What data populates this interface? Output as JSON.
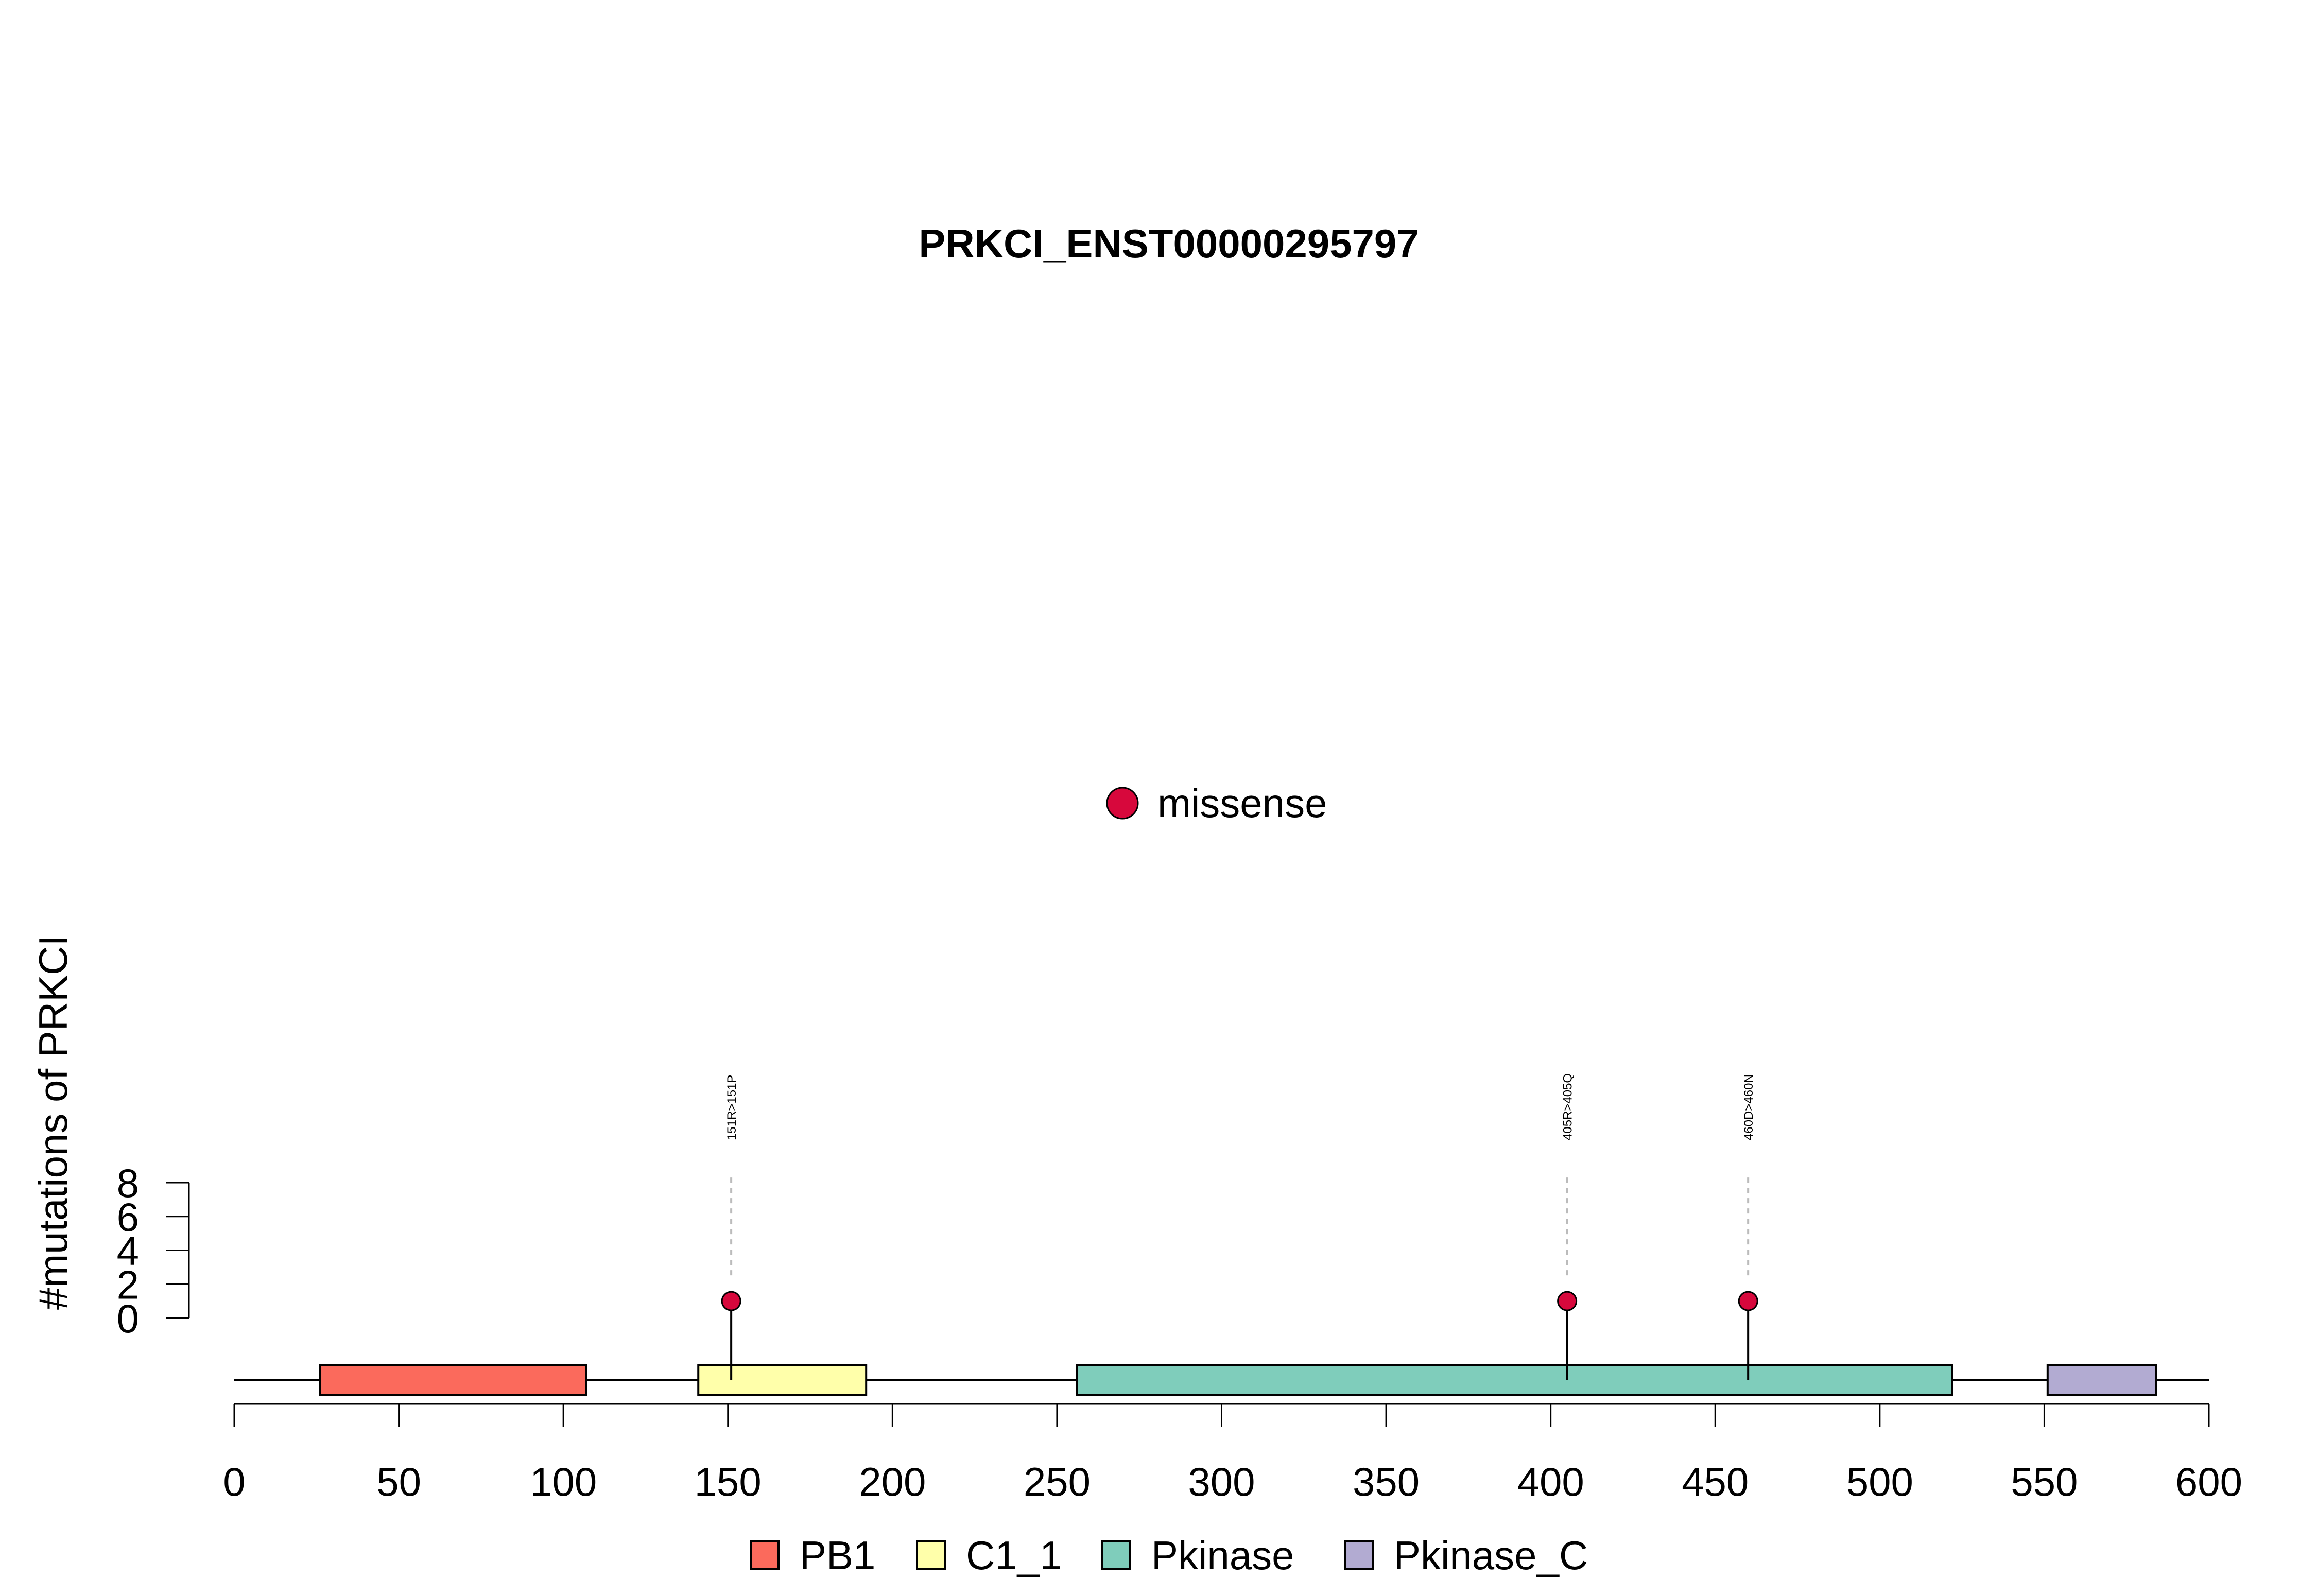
{
  "chart_data": {
    "type": "lollipop",
    "title": "PRKCI_ENST00000295797",
    "ylabel": "#mutations of PRKCI",
    "xlabel": "",
    "xlim": [
      0,
      600
    ],
    "x_ticks": [
      0,
      50,
      100,
      150,
      200,
      250,
      300,
      350,
      400,
      450,
      500,
      550,
      600
    ],
    "ylim": [
      0,
      8
    ],
    "y_ticks": [
      0,
      2,
      4,
      6,
      8
    ],
    "protein_length": 600,
    "domains": [
      {
        "name": "PB1",
        "start": 26,
        "end": 107,
        "color": "#FB6A5C"
      },
      {
        "name": "C1_1",
        "start": 141,
        "end": 192,
        "color": "#FFFFAA"
      },
      {
        "name": "Pkinase",
        "start": 256,
        "end": 522,
        "color": "#7FCDBB"
      },
      {
        "name": "Pkinase_C",
        "start": 551,
        "end": 584,
        "color": "#B2ABD2"
      }
    ],
    "mutations": [
      {
        "position": 151,
        "count": 1,
        "type": "missense",
        "label": "151R>151P"
      },
      {
        "position": 405,
        "count": 1,
        "type": "missense",
        "label": "405R>405Q"
      },
      {
        "position": 460,
        "count": 1,
        "type": "missense",
        "label": "460D>460N"
      }
    ],
    "mutation_legend": [
      {
        "name": "missense",
        "color": "#D7083C"
      }
    ],
    "domain_legend_position": "bottom",
    "mutation_legend_position": "center",
    "grid": false
  }
}
